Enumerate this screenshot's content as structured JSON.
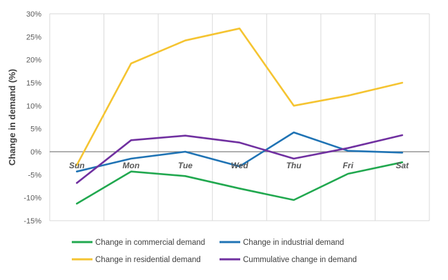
{
  "chart_data": {
    "type": "line",
    "title": "",
    "xlabel": "",
    "ylabel": "Change in demand (%)",
    "ylim": [
      -15,
      30
    ],
    "ytick_step": 5,
    "ytick_suffix": "%",
    "grid": "vertical-category",
    "legend_position": "bottom",
    "categories": [
      "Sun",
      "Mon",
      "Tue",
      "Wed",
      "Thu",
      "Fri",
      "Sat"
    ],
    "series": [
      {
        "name": "Change in commercial demand",
        "color": "#21A84F",
        "values": [
          -11.3,
          -4.3,
          -5.3,
          -8.0,
          -10.5,
          -4.8,
          -2.3
        ]
      },
      {
        "name": "Change in industrial demand",
        "color": "#1F73B4",
        "values": [
          -4.3,
          -1.5,
          0.0,
          -3.2,
          4.2,
          0.2,
          -0.2
        ]
      },
      {
        "name": "Change in residential demand",
        "color": "#F5C431",
        "values": [
          -2.9,
          19.2,
          24.2,
          26.8,
          10.0,
          12.2,
          15.0
        ]
      },
      {
        "name": "Cummulative change in demand",
        "color": "#7030A0",
        "values": [
          -6.8,
          2.5,
          3.5,
          2.0,
          -1.5,
          0.8,
          3.6
        ]
      }
    ]
  }
}
